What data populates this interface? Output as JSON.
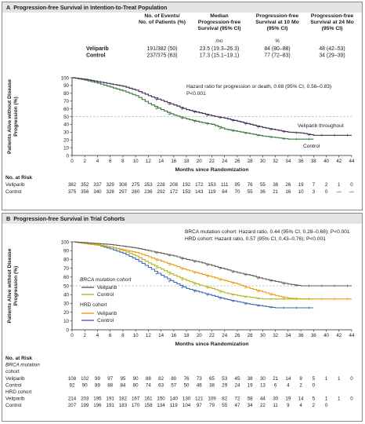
{
  "colors": {
    "panelA_veliparib": "#4a3459",
    "panelA_control": "#3f7a44",
    "panelB_brca_veliparib": "#5f5a55",
    "panelB_brca_control": "#b8b41a",
    "panelB_hrd_veliparib": "#ee9a14",
    "panelB_hrd_control": "#3b68b4",
    "reference_line": "#8a8a8a",
    "header_band": "#e4e4e4"
  },
  "panels": [
    {
      "letter": "A",
      "title": "Progression-free Survival in Intention-to-Treat Population",
      "table": {
        "headers": [
          "No. of Events/\nNo. of Patients (%)",
          "Median\nProgression-free\nSurvival (95% CI)",
          "Progression-free\nSurvival at 10 Mo\n(95% CI)",
          "Progression-free\nSurvival at 24 Mo\n(95% CI)"
        ],
        "units": [
          "",
          "mo",
          "%",
          ""
        ],
        "rows": [
          {
            "label": "Veliparib",
            "cells": [
              "191/382 (50)",
              "23.5 (19.3–26.3)",
              "84 (80–88)",
              "48 (42–53)"
            ]
          },
          {
            "label": "Control",
            "cells": [
              "237/375 (63)",
              "17.3 (15.1–19.1)",
              "77 (72–83)",
              "34 (29–39)"
            ]
          }
        ]
      },
      "annotations": [
        "Hazard ratio for progression or death, 0.68 (95% CI, 0.56–0.83)",
        "P<0.001"
      ],
      "at_risk": {
        "heading": "No. at Risk",
        "groups": [
          {
            "label": "",
            "rows": [
              {
                "label": "Veliparib",
                "values": [
                  "382",
                  "352",
                  "337",
                  "329",
                  "308",
                  "275",
                  "253",
                  "228",
                  "208",
                  "192",
                  "172",
                  "153",
                  "111",
                  "95",
                  "76",
                  "55",
                  "38",
                  "26",
                  "19",
                  "7",
                  "2",
                  "1",
                  "0"
                ]
              },
              {
                "label": "Control",
                "values": [
                  "375",
                  "356",
                  "340",
                  "328",
                  "297",
                  "260",
                  "236",
                  "202",
                  "172",
                  "153",
                  "143",
                  "119",
                  "84",
                  "70",
                  "55",
                  "36",
                  "21",
                  "16",
                  "10",
                  "3",
                  "0",
                  "—",
                  "—"
                ]
              }
            ]
          }
        ]
      }
    },
    {
      "letter": "B",
      "title": "Progression-free Survival in Trial Cohorts",
      "annotations": [
        "BRCA mutation cohort: Hazard ratio, 0.44 (95% CI, 0.28–0.68); P<0.001",
        "HRD cohort: Hazard ratio, 0.57 (95% CI, 0.43–0.76); P<0.001"
      ],
      "legend": {
        "brca_title": "BRCA mutation cohort",
        "hrd_title": "HRD cohort",
        "veliparib": "Veliparib",
        "control": "Control"
      },
      "at_risk": {
        "heading": "No. at Risk",
        "groups": [
          {
            "label": "BRCA mutation\ncohort",
            "rows": [
              {
                "label": "Veliparib",
                "values": [
                  "108",
                  "102",
                  "99",
                  "97",
                  "95",
                  "90",
                  "88",
                  "82",
                  "80",
                  "76",
                  "73",
                  "65",
                  "53",
                  "45",
                  "38",
                  "30",
                  "21",
                  "14",
                  "9",
                  "5",
                  "1",
                  "1",
                  "0"
                ]
              },
              {
                "label": "Control",
                "values": [
                  "92",
                  "90",
                  "89",
                  "88",
                  "84",
                  "80",
                  "74",
                  "63",
                  "57",
                  "50",
                  "46",
                  "38",
                  "29",
                  "24",
                  "19",
                  "13",
                  "6",
                  "4",
                  "2",
                  "0",
                  "",
                  "",
                  ""
                ]
              }
            ]
          },
          {
            "label": "HRD cohort",
            "rows": [
              {
                "label": "Veliparib",
                "values": [
                  "214",
                  "203",
                  "195",
                  "191",
                  "182",
                  "167",
                  "161",
                  "150",
                  "140",
                  "130",
                  "121",
                  "109",
                  "82",
                  "72",
                  "58",
                  "44",
                  "30",
                  "19",
                  "14",
                  "5",
                  "1",
                  "1",
                  "0"
                ]
              },
              {
                "label": "Control",
                "values": [
                  "207",
                  "199",
                  "196",
                  "191",
                  "183",
                  "170",
                  "158",
                  "134",
                  "119",
                  "104",
                  "97",
                  "79",
                  "55",
                  "47",
                  "34",
                  "22",
                  "11",
                  "9",
                  "4",
                  "2",
                  "0",
                  "",
                  ""
                ]
              }
            ]
          }
        ]
      }
    }
  ],
  "chart_data": [
    {
      "type": "line",
      "title": "Progression-free Survival in Intention-to-Treat Population",
      "xlabel": "Months since Randomization",
      "ylabel": "Patients Alive without Disease Progression (%)",
      "xlim": [
        0,
        44
      ],
      "ylim": [
        0,
        100
      ],
      "xticks": [
        0,
        2,
        4,
        6,
        8,
        10,
        12,
        14,
        16,
        18,
        20,
        22,
        24,
        26,
        28,
        30,
        32,
        34,
        36,
        38,
        40,
        42,
        44
      ],
      "yticks": [
        0,
        10,
        20,
        30,
        40,
        50,
        60,
        70,
        80,
        90,
        100
      ],
      "reference_y": 50,
      "series": [
        {
          "name": "Veliparib throughout",
          "x": [
            0,
            2,
            4,
            6,
            8,
            10,
            12,
            14,
            16,
            18,
            20,
            22,
            24,
            26,
            28,
            30,
            32,
            34,
            36,
            38,
            40,
            42,
            44
          ],
          "y": [
            100,
            98,
            95,
            92,
            89,
            84,
            77,
            71,
            65,
            59,
            55,
            51,
            48,
            44,
            40,
            36,
            33,
            30,
            29,
            26,
            26,
            26,
            26
          ]
        },
        {
          "name": "Control",
          "x": [
            0,
            2,
            4,
            6,
            8,
            10,
            12,
            14,
            16,
            18,
            20,
            22,
            24,
            26,
            28,
            30,
            32,
            34,
            36,
            38
          ],
          "y": [
            100,
            97,
            93,
            88,
            83,
            77,
            67,
            59,
            52,
            47,
            43,
            40,
            34,
            31,
            28,
            25,
            23,
            21,
            21,
            21
          ]
        }
      ]
    },
    {
      "type": "line",
      "title": "Progression-free Survival in Trial Cohorts",
      "xlabel": "Months since Randomization",
      "ylabel": "Patients Alive without Disease Progression (%)",
      "xlim": [
        0,
        44
      ],
      "ylim": [
        0,
        100
      ],
      "xticks": [
        0,
        2,
        4,
        6,
        8,
        10,
        12,
        14,
        16,
        18,
        20,
        22,
        24,
        26,
        28,
        30,
        32,
        34,
        36,
        38,
        40,
        42,
        44
      ],
      "yticks": [
        0,
        10,
        20,
        30,
        40,
        50,
        60,
        70,
        80,
        90,
        100
      ],
      "reference_y": 50,
      "series": [
        {
          "name": "Veliparib",
          "x": [
            0,
            2,
            4,
            6,
            8,
            10,
            12,
            14,
            16,
            18,
            20,
            22,
            24,
            26,
            28,
            30,
            32,
            34,
            36,
            38,
            40,
            42,
            44
          ],
          "y": [
            100,
            99,
            98,
            97,
            95,
            93,
            90,
            87,
            84,
            80,
            77,
            73,
            69,
            65,
            62,
            58,
            55,
            52,
            50,
            50,
            50,
            50,
            50
          ]
        },
        {
          "name": "Control",
          "x": [
            0,
            2,
            4,
            6,
            8,
            10,
            12,
            14,
            16,
            18,
            20,
            22,
            24,
            26,
            28,
            30,
            32,
            34,
            36,
            38
          ],
          "y": [
            100,
            99,
            97,
            94,
            90,
            84,
            76,
            69,
            62,
            56,
            51,
            47,
            42,
            39,
            37,
            35,
            35,
            35,
            35,
            35
          ]
        },
        {
          "name": "Veliparib",
          "x": [
            0,
            2,
            4,
            6,
            8,
            10,
            12,
            14,
            16,
            18,
            20,
            22,
            24,
            26,
            28,
            30,
            32,
            34,
            36,
            38,
            40,
            42,
            44
          ],
          "y": [
            100,
            98,
            96,
            94,
            91,
            88,
            83,
            78,
            73,
            68,
            64,
            60,
            56,
            52,
            47,
            43,
            39,
            36,
            35,
            35,
            35,
            35,
            35
          ]
        },
        {
          "name": "Control",
          "x": [
            0,
            2,
            4,
            6,
            8,
            10,
            12,
            14,
            16,
            18,
            20,
            22,
            24,
            26,
            28,
            30,
            32,
            34,
            36,
            38
          ],
          "y": [
            100,
            98,
            96,
            92,
            87,
            80,
            71,
            62,
            54,
            47,
            43,
            39,
            35,
            32,
            29,
            27,
            25,
            25,
            25,
            25
          ]
        }
      ]
    }
  ]
}
